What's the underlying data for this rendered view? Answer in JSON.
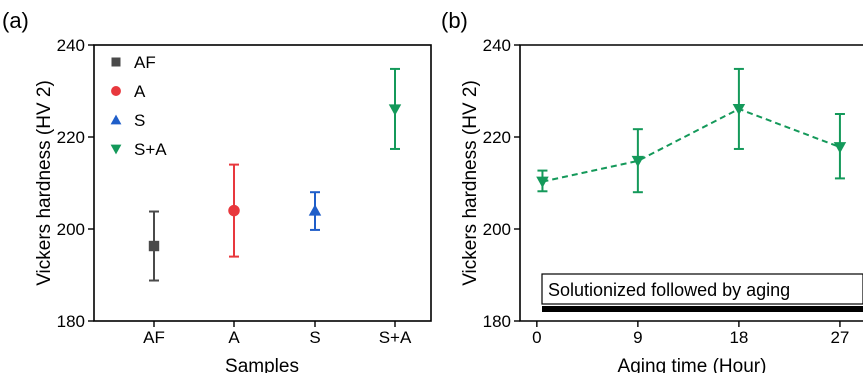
{
  "chart_data": [
    {
      "type": "scatter",
      "panel_label": "(a)",
      "xlabel": "Samples",
      "ylabel": "Vickers hardness (HV 2)",
      "categories": [
        "AF",
        "A",
        "S",
        "S+A"
      ],
      "ylim": [
        180,
        240
      ],
      "yticks": [
        180,
        200,
        220,
        240
      ],
      "legend_position": "top-left",
      "grid": false,
      "series": [
        {
          "name": "AF",
          "category": "AF",
          "value": 196.3,
          "error_low": 188.8,
          "error_high": 203.8,
          "color": "#4a4a4a",
          "marker": "square"
        },
        {
          "name": "A",
          "category": "A",
          "value": 204.0,
          "error_low": 194.0,
          "error_high": 214.0,
          "color": "#e8383d",
          "marker": "circle"
        },
        {
          "name": "S",
          "category": "S",
          "value": 204.0,
          "error_low": 199.8,
          "error_high": 208.0,
          "color": "#1f5ec9",
          "marker": "triangle-up"
        },
        {
          "name": "S+A",
          "category": "S+A",
          "value": 226.0,
          "error_low": 217.4,
          "error_high": 234.8,
          "color": "#14995a",
          "marker": "triangle-down"
        }
      ]
    },
    {
      "type": "line",
      "panel_label": "(b)",
      "xlabel": "Aging time (Hour)",
      "ylabel": "Vickers hardness (HV 2)",
      "xticks": [
        0,
        9,
        18,
        27
      ],
      "xlim": [
        -1.5,
        29.5
      ],
      "ylim": [
        180,
        240
      ],
      "yticks": [
        180,
        200,
        220,
        240
      ],
      "annotation": "Solutionized followed by aging",
      "grid": false,
      "series": [
        {
          "color": "#14995a",
          "marker": "triangle-down",
          "line_style": "dashed",
          "x": [
            0.5,
            9,
            18,
            27
          ],
          "y": [
            210.3,
            214.8,
            226.1,
            217.8
          ],
          "error_low": [
            208.2,
            208.0,
            217.4,
            211.0
          ],
          "error_high": [
            212.7,
            221.7,
            234.8,
            225.0
          ]
        }
      ]
    }
  ]
}
